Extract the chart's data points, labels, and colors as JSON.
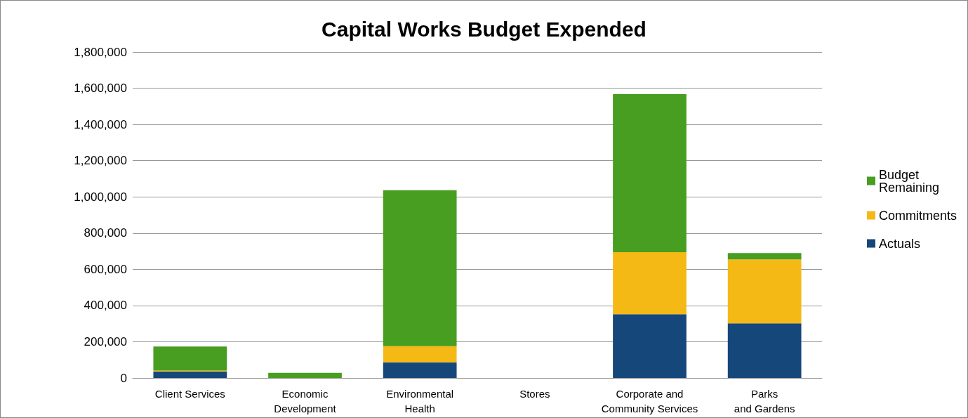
{
  "chart_data": {
    "type": "bar",
    "title": "Capital Works Budget Expended",
    "stacked": true,
    "categories": [
      "Client Services",
      "Economic\nDevelopment",
      "Environmental\nHealth",
      "Stores",
      "Corporate and\nCommunity Services",
      "Parks\nand Gardens"
    ],
    "series": [
      {
        "name": "Actuals",
        "color": "#16477b",
        "values": [
          35000,
          0,
          86000,
          0,
          352000,
          302000
        ]
      },
      {
        "name": "Commitments",
        "color": "#f5b916",
        "values": [
          6000,
          0,
          90000,
          0,
          342000,
          353000
        ]
      },
      {
        "name": "Budget Remaining",
        "color": "#479e20",
        "values": [
          133000,
          28000,
          861000,
          0,
          873000,
          35000
        ]
      }
    ],
    "ylim": [
      0,
      1800000
    ],
    "yticks": [
      0,
      {
        "value": 200000,
        "label": "200,000"
      },
      {
        "value": 400000,
        "label": "400,000"
      },
      {
        "value": 600000,
        "label": "600,000"
      },
      {
        "value": 800000,
        "label": "800,000"
      },
      {
        "value": 1000000,
        "label": "1,000,000"
      },
      {
        "value": 1200000,
        "label": "1,200,000"
      },
      {
        "value": 1400000,
        "label": "1,400,000"
      },
      {
        "value": 1600000,
        "label": "1,600,000"
      },
      {
        "value": 1800000,
        "label": "1,800,000"
      }
    ],
    "grid": "y",
    "legend": "right"
  }
}
